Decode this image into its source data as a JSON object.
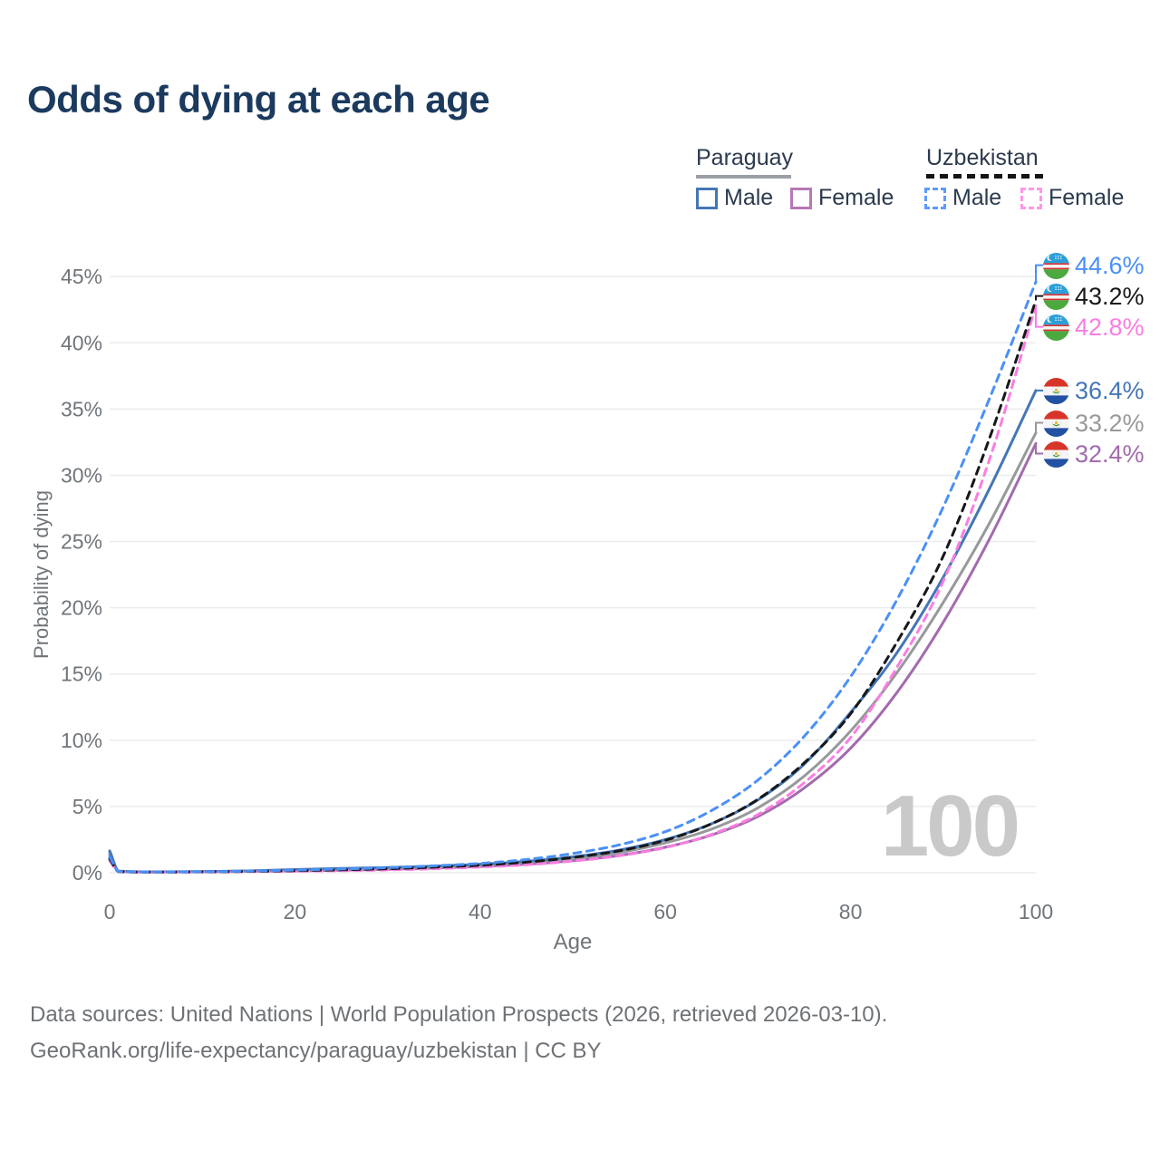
{
  "title": "Odds of dying at each age",
  "legend": {
    "paraguay": {
      "label": "Paraguay",
      "male": "Male",
      "female": "Female",
      "line_color": "#9aa0a6",
      "male_color": "#4576b5",
      "female_color": "#b678b6"
    },
    "uzbekistan": {
      "label": "Uzbekistan",
      "male": "Male",
      "female": "Female",
      "line_color": "#151515",
      "male_color": "#5c9bff",
      "female_color": "#ff96e8"
    }
  },
  "watermark_age": "100",
  "footer": {
    "line1": "Data sources: United Nations | World Population Prospects (2026, retrieved 2026-03-10).",
    "line2": "GeoRank.org/life-expectancy/paraguay/uzbekistan | CC BY"
  },
  "chart_data": {
    "type": "line",
    "title": "Odds of dying at each age",
    "xlabel": "Age",
    "ylabel": "Probability of dying",
    "xlim": [
      0,
      100
    ],
    "ylim": [
      0,
      45
    ],
    "xticks": [
      0,
      20,
      40,
      60,
      80,
      100
    ],
    "yticks": [
      0,
      5,
      10,
      15,
      20,
      25,
      30,
      35,
      40,
      45
    ],
    "ytick_suffix": "%",
    "grid": "horizontal",
    "legend_position": "top-right",
    "x": [
      0,
      1,
      5,
      10,
      15,
      20,
      25,
      30,
      35,
      40,
      45,
      50,
      55,
      60,
      65,
      70,
      75,
      80,
      85,
      90,
      95,
      100
    ],
    "series": [
      {
        "name": "Paraguay Female",
        "country": "Paraguay",
        "sex": "Female",
        "flag": "py",
        "dash": false,
        "color": "#a36bae",
        "end_label": "32.4%",
        "values": [
          1.35,
          0.1,
          0.05,
          0.07,
          0.1,
          0.14,
          0.19,
          0.26,
          0.35,
          0.47,
          0.64,
          0.91,
          1.3,
          1.92,
          2.85,
          4.25,
          6.4,
          9.4,
          13.6,
          18.9,
          25.2,
          32.4
        ]
      },
      {
        "name": "Paraguay (both sexes)",
        "country": "Paraguay",
        "sex": "Both",
        "flag": "py",
        "dash": false,
        "color": "#97999b",
        "end_label": "33.2%",
        "values": [
          1.5,
          0.11,
          0.06,
          0.08,
          0.12,
          0.2,
          0.27,
          0.35,
          0.44,
          0.57,
          0.77,
          1.07,
          1.52,
          2.25,
          3.3,
          4.9,
          7.3,
          10.7,
          15.1,
          20.4,
          26.4,
          33.2
        ]
      },
      {
        "name": "Paraguay Male",
        "country": "Paraguay",
        "sex": "Male",
        "flag": "py",
        "dash": false,
        "color": "#4576b5",
        "end_label": "36.4%",
        "values": [
          1.65,
          0.12,
          0.07,
          0.09,
          0.14,
          0.24,
          0.32,
          0.4,
          0.5,
          0.64,
          0.86,
          1.2,
          1.7,
          2.5,
          3.7,
          5.5,
          8.2,
          12.1,
          16.6,
          22.3,
          29.0,
          36.4
        ]
      },
      {
        "name": "Uzbekistan Female",
        "country": "Uzbekistan",
        "sex": "Female",
        "flag": "uz",
        "dash": true,
        "color": "#fb7de2",
        "end_label": "42.8%",
        "values": [
          0.9,
          0.08,
          0.04,
          0.05,
          0.08,
          0.11,
          0.15,
          0.21,
          0.3,
          0.43,
          0.6,
          0.88,
          1.28,
          1.9,
          2.9,
          4.4,
          6.8,
          10.2,
          15.5,
          22.0,
          31.2,
          42.8
        ]
      },
      {
        "name": "Uzbekistan (both sexes)",
        "country": "Uzbekistan",
        "sex": "Both",
        "flag": "uz",
        "dash": true,
        "color": "#17181a",
        "end_label": "43.2%",
        "values": [
          1.05,
          0.09,
          0.05,
          0.07,
          0.1,
          0.16,
          0.22,
          0.3,
          0.42,
          0.57,
          0.8,
          1.15,
          1.65,
          2.45,
          3.7,
          5.55,
          8.3,
          12.0,
          17.4,
          23.9,
          32.8,
          43.2
        ]
      },
      {
        "name": "Uzbekistan Male",
        "country": "Uzbekistan",
        "sex": "Male",
        "flag": "uz",
        "dash": true,
        "color": "#4a90f5",
        "end_label": "44.6%",
        "values": [
          1.2,
          0.1,
          0.06,
          0.08,
          0.12,
          0.2,
          0.28,
          0.38,
          0.52,
          0.7,
          1.0,
          1.45,
          2.1,
          3.1,
          4.7,
          7.0,
          10.3,
          14.8,
          20.6,
          27.6,
          35.8,
          44.6
        ]
      }
    ]
  }
}
